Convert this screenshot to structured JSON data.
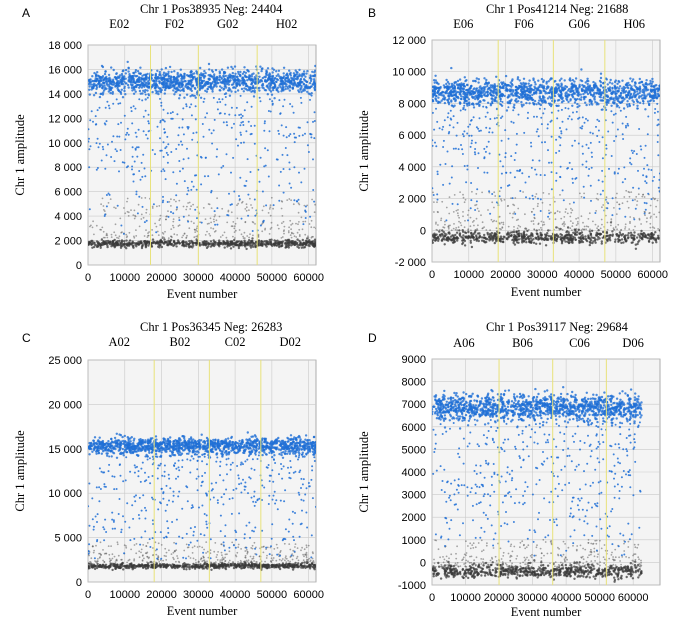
{
  "colors": {
    "positive": "#1f6fd6",
    "negative": "#3a3a3a",
    "plot_background": "#f4f4f4",
    "grid": "#c9c9c9",
    "divider": "#e8e27a"
  },
  "chart_data": [
    {
      "type": "scatter",
      "panel_letter": "A",
      "title": "Chr 1    Pos38935    Neg: 24404",
      "xlabel": "Event number",
      "ylabel": "Chr 1 amplitude",
      "xlim": [
        0,
        62000
      ],
      "ylim": [
        0,
        18000
      ],
      "x_ticks": [
        0,
        10000,
        20000,
        30000,
        40000,
        50000,
        60000
      ],
      "x_tick_labels": [
        "0",
        "10000",
        "20000",
        "30000",
        "40000",
        "50000",
        "60000"
      ],
      "y_ticks": [
        0,
        2000,
        4000,
        6000,
        8000,
        10000,
        12000,
        14000,
        16000,
        18000
      ],
      "y_tick_labels": [
        "0",
        "2 000",
        "4 000",
        "6 000",
        "8 000",
        "10 000",
        "12 000",
        "14 000",
        "16 000",
        "18 000"
      ],
      "grid": true,
      "wells": [
        {
          "label": "E02",
          "center": 8500
        },
        {
          "label": "F02",
          "center": 23500
        },
        {
          "label": "G02",
          "center": 38000
        },
        {
          "label": "H02",
          "center": 54000
        }
      ],
      "well_boundaries": [
        17000,
        30000,
        46000
      ],
      "positive_band": {
        "center": 15000,
        "spread": 500
      },
      "negative_band": {
        "center": 1750,
        "spread": 150
      },
      "rain_range": [
        2500,
        14000
      ],
      "secondary_negative_range": [
        2200,
        5500
      ]
    },
    {
      "type": "scatter",
      "panel_letter": "B",
      "title": "Chr 1    Pos41214    Neg: 21688",
      "xlabel": "Event number",
      "ylabel": "Chr 1 amplitude",
      "xlim": [
        0,
        62000
      ],
      "ylim": [
        -2000,
        12000
      ],
      "x_ticks": [
        0,
        10000,
        20000,
        30000,
        40000,
        50000,
        60000
      ],
      "x_tick_labels": [
        "0",
        "10000",
        "20000",
        "30000",
        "40000",
        "50000",
        "60000"
      ],
      "y_ticks": [
        -2000,
        0,
        2000,
        4000,
        6000,
        8000,
        10000,
        12000
      ],
      "y_tick_labels": [
        "-2 000",
        "0",
        "2 000",
        "4 000",
        "6 000",
        "8 000",
        "10 000",
        "12 000"
      ],
      "grid": true,
      "wells": [
        {
          "label": "E06",
          "center": 8500
        },
        {
          "label": "F06",
          "center": 25000
        },
        {
          "label": "G06",
          "center": 40000
        },
        {
          "label": "H06",
          "center": 55000
        }
      ],
      "well_boundaries": [
        18000,
        33000,
        47000
      ],
      "positive_band": {
        "center": 8700,
        "spread": 400
      },
      "negative_band": {
        "center": -450,
        "spread": 200
      },
      "rain_range": [
        500,
        8200
      ],
      "secondary_negative_range": [
        0,
        2500
      ]
    },
    {
      "type": "scatter",
      "panel_letter": "C",
      "title": "Chr 1    Pos36345    Neg: 26283",
      "xlabel": "Event number",
      "ylabel": "Chr 1 amplitude",
      "xlim": [
        0,
        62000
      ],
      "ylim": [
        0,
        25000
      ],
      "x_ticks": [
        0,
        10000,
        20000,
        30000,
        40000,
        50000,
        60000
      ],
      "x_tick_labels": [
        "0",
        "10000",
        "20000",
        "30000",
        "40000",
        "50000",
        "60000"
      ],
      "y_ticks": [
        0,
        5000,
        10000,
        15000,
        20000,
        25000
      ],
      "y_tick_labels": [
        "0",
        "5 000",
        "10 000",
        "15 000",
        "20 000",
        "25 000"
      ],
      "grid": true,
      "wells": [
        {
          "label": "A02",
          "center": 8500
        },
        {
          "label": "B02",
          "center": 25000
        },
        {
          "label": "C02",
          "center": 40000
        },
        {
          "label": "D02",
          "center": 55000
        }
      ],
      "well_boundaries": [
        18000,
        33000,
        47000
      ],
      "positive_band": {
        "center": 15300,
        "spread": 500
      },
      "negative_band": {
        "center": 1800,
        "spread": 150
      },
      "rain_range": [
        2500,
        14500
      ],
      "secondary_negative_range": [
        2200,
        4500
      ]
    },
    {
      "type": "scatter",
      "panel_letter": "D",
      "title": "Chr 1    Pos39117    Neg: 29684",
      "xlabel": "Event number",
      "ylabel": "Chr 1 amplitude",
      "xlim": [
        0,
        68000
      ],
      "ylim": [
        -1000,
        9000
      ],
      "x_ticks": [
        0,
        10000,
        20000,
        30000,
        40000,
        50000,
        60000
      ],
      "x_tick_labels": [
        "0",
        "10000",
        "20000",
        "30000",
        "40000",
        "50000",
        "60000"
      ],
      "y_ticks": [
        -1000,
        0,
        1000,
        2000,
        3000,
        4000,
        5000,
        6000,
        7000,
        8000,
        9000
      ],
      "y_tick_labels": [
        "-1000",
        "0",
        "1000",
        "2000",
        "3000",
        "4000",
        "5000",
        "6000",
        "7000",
        "8000",
        "9000"
      ],
      "grid": true,
      "wells": [
        {
          "label": "A06",
          "center": 9500
        },
        {
          "label": "B06",
          "center": 27000
        },
        {
          "label": "C06",
          "center": 44000
        },
        {
          "label": "D06",
          "center": 60000
        }
      ],
      "well_boundaries": [
        20000,
        36000,
        52000
      ],
      "positive_band": {
        "center": 6850,
        "spread": 300
      },
      "negative_band": {
        "center": -400,
        "spread": 150
      },
      "rain_range": [
        200,
        6400
      ],
      "secondary_negative_range": [
        -200,
        1000
      ]
    }
  ]
}
